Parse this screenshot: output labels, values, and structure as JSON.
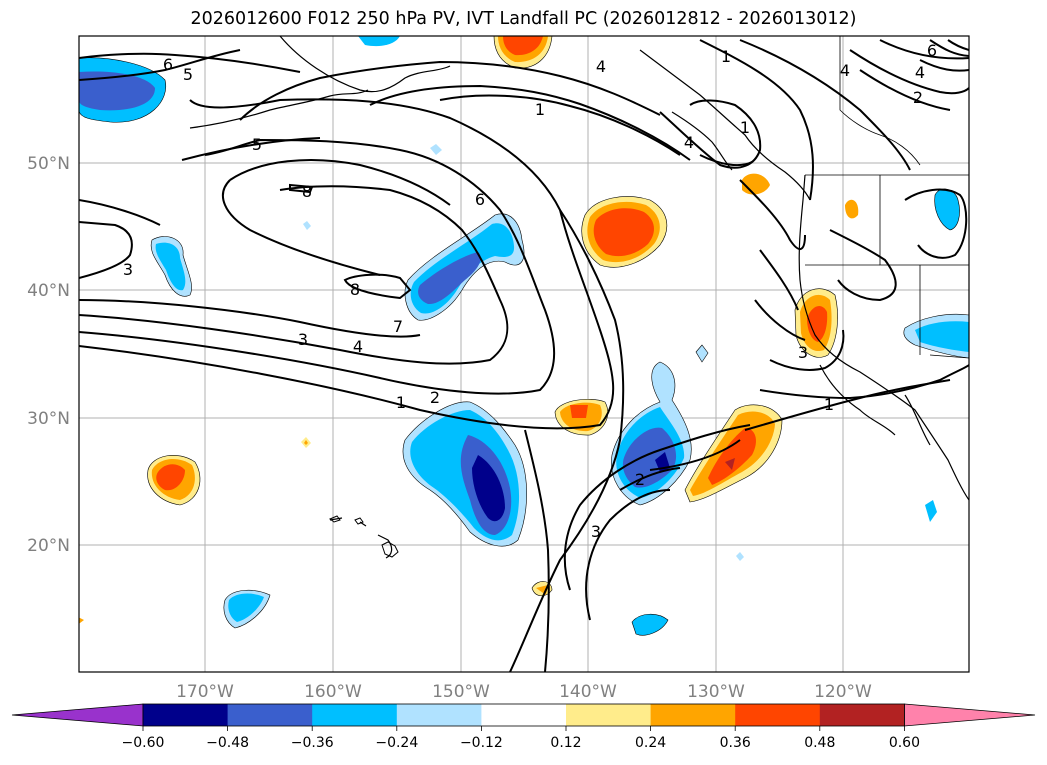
{
  "title": "2026012600 F012 250 hPa PV, IVT Landfall PC (2026012812 - 2026013012)",
  "lat_labels": [
    "50°N",
    "40°N",
    "30°N",
    "20°N"
  ],
  "lon_labels": [
    "170°W",
    "160°W",
    "150°W",
    "140°W",
    "130°W",
    "120°W"
  ],
  "colorbar": {
    "tick_labels": [
      "−0.60",
      "−0.48",
      "−0.36",
      "−0.24",
      "−0.12",
      "0.12",
      "0.24",
      "0.36",
      "0.48",
      "0.60"
    ],
    "colors": [
      "#9932CC",
      "#00008B",
      "#3A5FCD",
      "#00BFFF",
      "#B0E2FF",
      "#FFFFFF",
      "#FFEC8B",
      "#FFA500",
      "#FF4500",
      "#B22222",
      "#FF82AB"
    ]
  },
  "contour_labels": [
    "6",
    "5",
    "5",
    "4",
    "1",
    "1",
    "4",
    "4",
    "4",
    "1",
    "6",
    "2",
    "8",
    "6",
    "8",
    "7",
    "3",
    "4",
    "3",
    "2",
    "1",
    "2",
    "3",
    "3",
    "1"
  ]
}
